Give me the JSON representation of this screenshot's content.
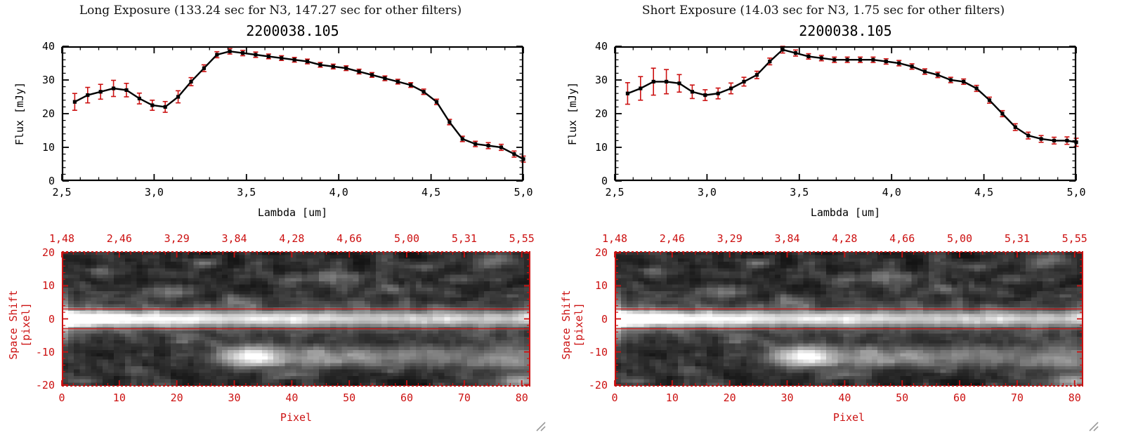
{
  "colors": {
    "red": "#cc1111",
    "black": "#000000",
    "background": "#ffffff"
  },
  "panels": [
    {
      "id": "long",
      "title": "Long Exposure (133.24 sec for N3, 147.27 sec for other filters)",
      "plot_title": "2200038.105"
    },
    {
      "id": "short",
      "title": "Short Exposure (14.03 sec for N3, 1.75 sec for other filters)",
      "plot_title": "2200038.105"
    }
  ],
  "shared": {
    "spectrum_axes": {
      "xlabel": "Lambda [um]",
      "ylabel": "Flux [mJy]",
      "xlim": [
        2.5,
        5.0
      ],
      "ylim": [
        0,
        40
      ],
      "xtick_labels": [
        "2,5",
        "3,0",
        "3,5",
        "4,0",
        "4,5",
        "5,0"
      ],
      "xtick_values": [
        2.5,
        3.0,
        3.5,
        4.0,
        4.5,
        5.0
      ],
      "ytick_labels": [
        "40",
        "30",
        "20",
        "10",
        "0"
      ],
      "ytick_values": [
        40,
        30,
        20,
        10,
        0
      ]
    },
    "image_axes": {
      "xlabel": "Pixel",
      "ylabel": "Space Shift [pixel]",
      "xlim": [
        0,
        81.5
      ],
      "ylim": [
        -20.5,
        20.5
      ],
      "top_labels": [
        "1,48",
        "2,46",
        "3,29",
        "3,84",
        "4,28",
        "4,66",
        "5,00",
        "5,31",
        "5,55"
      ],
      "top_values": [
        0,
        10,
        20,
        30,
        40,
        50,
        60,
        70,
        80
      ],
      "xtick_labels": [
        "0",
        "10",
        "20",
        "30",
        "40",
        "50",
        "60",
        "70",
        "80"
      ],
      "xtick_values": [
        0,
        10,
        20,
        30,
        40,
        50,
        60,
        70,
        80
      ],
      "ytick_labels": [
        "20",
        "10",
        "0",
        "-10",
        "-20"
      ],
      "ytick_values": [
        20,
        10,
        0,
        -10,
        -20
      ]
    }
  },
  "chart_data": [
    {
      "type": "line",
      "panel": "long",
      "title": "2200038.105",
      "xlabel": "Lambda [um]",
      "ylabel": "Flux [mJy]",
      "xlim": [
        2.5,
        5.0
      ],
      "ylim": [
        0,
        40
      ],
      "marker": "square",
      "line_color": "#000000",
      "error_color": "#cc1111",
      "x": [
        2.57,
        2.64,
        2.71,
        2.78,
        2.85,
        2.92,
        2.99,
        3.06,
        3.13,
        3.2,
        3.27,
        3.34,
        3.41,
        3.48,
        3.55,
        3.62,
        3.69,
        3.76,
        3.83,
        3.9,
        3.97,
        4.04,
        4.11,
        4.18,
        4.25,
        4.32,
        4.39,
        4.46,
        4.53,
        4.6,
        4.67,
        4.74,
        4.81,
        4.88,
        4.95,
        5.0
      ],
      "y": [
        23.5,
        25.5,
        26.5,
        27.5,
        27.0,
        24.5,
        22.5,
        22.0,
        25.0,
        29.5,
        33.5,
        37.5,
        38.5,
        38.0,
        37.5,
        37.0,
        36.5,
        36.0,
        35.5,
        34.5,
        34.0,
        33.5,
        32.5,
        31.5,
        30.5,
        29.5,
        28.5,
        26.5,
        23.5,
        17.5,
        12.5,
        11.0,
        10.5,
        10.0,
        8.0,
        6.5
      ],
      "yerr": [
        2.5,
        2.3,
        2.2,
        2.4,
        2.0,
        1.6,
        1.5,
        1.6,
        1.8,
        1.2,
        1.0,
        0.9,
        0.8,
        0.8,
        0.8,
        0.7,
        0.7,
        0.7,
        0.7,
        0.7,
        0.7,
        0.7,
        0.7,
        0.7,
        0.7,
        0.7,
        0.7,
        0.8,
        0.8,
        0.8,
        0.8,
        0.8,
        0.9,
        0.9,
        0.9,
        0.9
      ]
    },
    {
      "type": "line",
      "panel": "short",
      "title": "2200038.105",
      "xlabel": "Lambda [um]",
      "ylabel": "Flux [mJy]",
      "xlim": [
        2.5,
        5.0
      ],
      "ylim": [
        0,
        40
      ],
      "marker": "square",
      "line_color": "#000000",
      "error_color": "#cc1111",
      "x": [
        2.57,
        2.64,
        2.71,
        2.78,
        2.85,
        2.92,
        2.99,
        3.06,
        3.13,
        3.2,
        3.27,
        3.34,
        3.41,
        3.48,
        3.55,
        3.62,
        3.69,
        3.76,
        3.83,
        3.9,
        3.97,
        4.04,
        4.11,
        4.18,
        4.25,
        4.32,
        4.39,
        4.46,
        4.53,
        4.6,
        4.67,
        4.74,
        4.81,
        4.88,
        4.95,
        5.0
      ],
      "y": [
        26.0,
        27.5,
        29.5,
        29.5,
        29.0,
        26.5,
        25.5,
        26.0,
        27.5,
        29.5,
        31.5,
        35.5,
        39.0,
        38.0,
        37.0,
        36.5,
        36.0,
        36.0,
        36.0,
        36.0,
        35.5,
        35.0,
        34.0,
        32.5,
        31.5,
        30.0,
        29.5,
        27.5,
        24.0,
        20.0,
        16.0,
        13.5,
        12.5,
        12.0,
        12.0,
        11.5
      ],
      "yerr": [
        3.2,
        3.5,
        4.0,
        3.6,
        2.6,
        2.0,
        1.6,
        1.6,
        1.6,
        1.3,
        1.1,
        1.0,
        1.0,
        0.9,
        0.8,
        0.8,
        0.8,
        0.8,
        0.8,
        0.8,
        0.8,
        0.8,
        0.8,
        0.8,
        0.8,
        0.8,
        0.8,
        0.9,
        0.9,
        0.9,
        1.0,
        1.0,
        1.0,
        1.0,
        1.1,
        1.2
      ]
    },
    {
      "type": "heatmap",
      "panel": "both",
      "colormap": "gray",
      "x_range": [
        0,
        81
      ],
      "y_range": [
        -20,
        20
      ],
      "xlabel": "Pixel",
      "ylabel": "Space Shift [pixel]",
      "top_wavelength_labels": [
        "1,48",
        "2,46",
        "3,29",
        "3,84",
        "4,28",
        "4,66",
        "5,00",
        "5,31",
        "5,55"
      ],
      "description": "2D slit spectral image: bright source trace at space shift 0 across all pixels (brightest at pixels 0-18), second trace at space shift -12 beginning near pixel 28 with a bright knot at pixel 33, faint background clumps over dark noise",
      "main_trace": {
        "y_center": 0,
        "sigma": 1.7,
        "amp_base": 0.52,
        "amp_boost": 0.5,
        "amp_scale": 16,
        "halo_amp": 0.15,
        "halo_sigma": 4.2
      },
      "second_trace": {
        "y_center": -11.5,
        "sigma": 2.3,
        "knot_x": 33,
        "knot_amp": 0.92,
        "knot_sigma": 4.5,
        "tail_amp": 0.42,
        "tail_start": 29
      },
      "left_edge": {
        "amp": 0.5,
        "x_scale": 1.3,
        "sigma": 5
      },
      "clumps": [
        [
          7,
          14,
          0.22,
          2,
          1.3
        ],
        [
          18,
          8,
          0.3,
          2.5,
          1.4
        ],
        [
          25,
          17,
          0.2,
          2,
          1
        ],
        [
          30,
          5,
          0.22,
          2,
          1.2
        ],
        [
          40,
          12,
          0.18,
          2,
          1
        ],
        [
          47,
          13,
          0.3,
          2.8,
          1.4
        ],
        [
          51,
          5,
          0.18,
          2,
          1
        ],
        [
          57,
          9,
          0.22,
          2,
          1
        ],
        [
          63,
          16,
          0.18,
          2,
          1
        ],
        [
          70,
          12,
          0.18,
          2,
          1
        ],
        [
          76,
          18,
          0.32,
          2.6,
          1.4
        ],
        [
          79,
          -14,
          0.25,
          2.5,
          1.5
        ],
        [
          80,
          -19,
          0.5,
          2.5,
          1.5
        ],
        [
          40,
          -17,
          0.22,
          3,
          1
        ],
        [
          12,
          -16,
          0.18,
          2,
          1
        ],
        [
          3,
          -19,
          0.28,
          2,
          1
        ],
        [
          22,
          -6,
          0.15,
          2,
          1
        ],
        [
          66,
          3,
          0.15,
          2,
          1
        ]
      ],
      "noise": {
        "seed": 42,
        "amp": 0.5,
        "floor": 0.04
      },
      "aperture_lines": [
        3,
        -3
      ]
    }
  ]
}
